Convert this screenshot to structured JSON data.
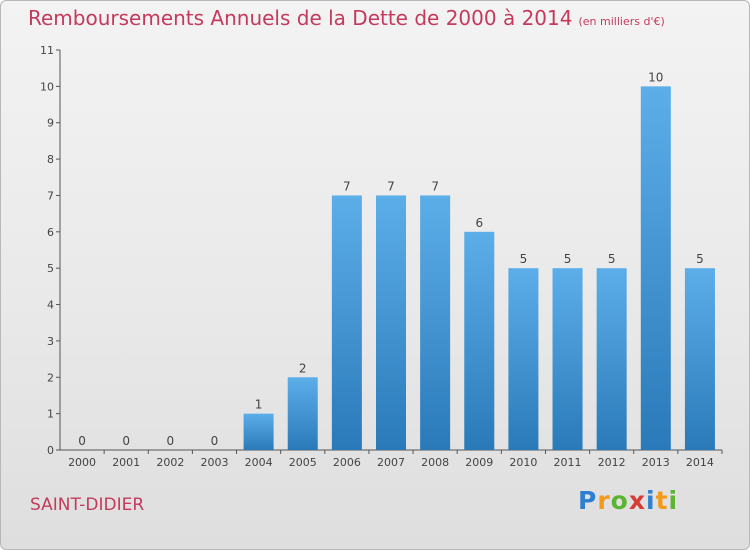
{
  "header": {
    "title": "Remboursements Annuels de la Dette de 2000 à 2014",
    "unit": "(en milliers d'€)"
  },
  "footer": {
    "commune": "SAINT-DIDIER",
    "logo_letters": [
      "P",
      "r",
      "o",
      "x",
      "i",
      "t",
      "i"
    ],
    "logo_colors": [
      "#2f7fd0",
      "#f39a1c",
      "#5bb531",
      "#d83a34",
      "#2f7fd0",
      "#f39a1c",
      "#5bb531"
    ]
  },
  "colors": {
    "bar_top": "#5caee9",
    "bar_bottom": "#2a7ab9",
    "title": "#c33a5c",
    "axis": "#555555"
  },
  "chart_data": {
    "type": "bar",
    "title": "Remboursements Annuels de la Dette de 2000 à 2014",
    "categories": [
      "2000",
      "2001",
      "2002",
      "2003",
      "2004",
      "2005",
      "2006",
      "2007",
      "2008",
      "2009",
      "2010",
      "2011",
      "2012",
      "2013",
      "2014"
    ],
    "values": [
      0,
      0,
      0,
      0,
      1,
      2,
      7,
      7,
      7,
      6,
      5,
      5,
      5,
      10,
      5
    ],
    "ylim": [
      0,
      11
    ],
    "yticks": [
      0,
      1,
      2,
      3,
      4,
      5,
      6,
      7,
      8,
      9,
      10,
      11
    ],
    "grid": false,
    "legend": "none"
  }
}
